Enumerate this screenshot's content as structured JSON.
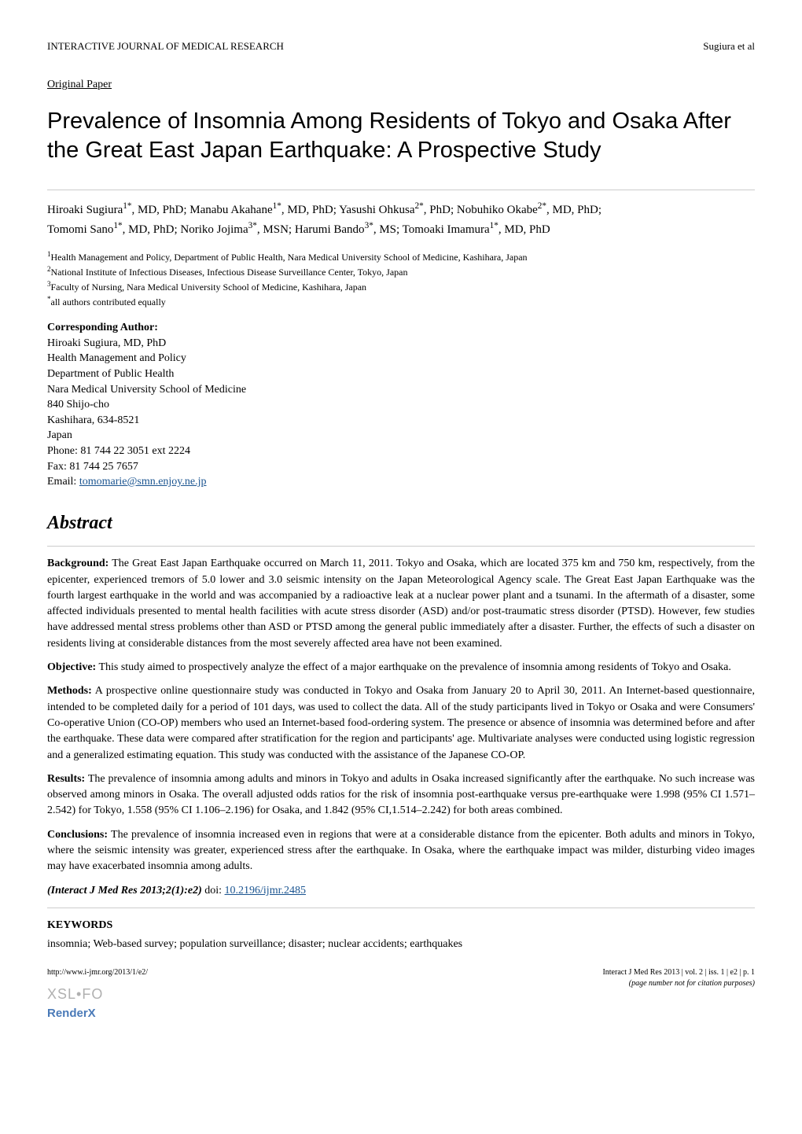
{
  "header": {
    "journal_name": "INTERACTIVE JOURNAL OF MEDICAL RESEARCH",
    "running_head": "Sugiura et al"
  },
  "paper_type": "Original Paper",
  "title": "Prevalence of Insomnia Among Residents of Tokyo and Osaka After the Great East Japan Earthquake: A Prospective Study",
  "authors_line1": "Hiroaki Sugiura1*, MD, PhD; Manabu Akahane1*, MD, PhD; Yasushi Ohkusa2*, PhD; Nobuhiko Okabe2*, MD, PhD;",
  "authors_line2": "Tomomi Sano1*, MD, PhD; Noriko Jojima3*, MSN; Harumi Bando3*, MS; Tomoaki Imamura1*, MD, PhD",
  "affiliations": {
    "aff1": "1Health Management and Policy, Department of Public Health, Nara Medical University School of Medicine, Kashihara, Japan",
    "aff2": "2National Institute of Infectious Diseases, Infectious Disease Surveillance Center, Tokyo, Japan",
    "aff3": "3Faculty of Nursing, Nara Medical University School of Medicine, Kashihara, Japan",
    "equal": "*all authors contributed equally"
  },
  "corresponding": {
    "label": "Corresponding Author:",
    "name": "Hiroaki Sugiura, MD, PhD",
    "line1": "Health Management and Policy",
    "line2": "Department of Public Health",
    "line3": "Nara Medical University School of Medicine",
    "line4": "840 Shijo-cho",
    "line5": "Kashihara, 634-8521",
    "line6": "Japan",
    "phone": "Phone: 81 744 22 3051 ext 2224",
    "fax": "Fax: 81 744 25 7657",
    "email_label": "Email: ",
    "email": "tomomarie@smn.enjoy.ne.jp"
  },
  "abstract": {
    "heading": "Abstract",
    "background_label": "Background:",
    "background_text": " The Great East Japan Earthquake occurred on March 11, 2011. Tokyo and Osaka, which are located 375 km and 750 km, respectively, from the epicenter, experienced tremors of 5.0 lower and 3.0 seismic intensity on the Japan Meteorological Agency scale. The Great East Japan Earthquake was the fourth largest earthquake in the world and was accompanied by a radioactive leak at a nuclear power plant and a tsunami. In the aftermath of a disaster, some affected individuals presented to mental health facilities with acute stress disorder (ASD) and/or post-traumatic stress disorder (PTSD). However, few studies have addressed mental stress problems other than ASD or PTSD among the general public immediately after a disaster. Further, the effects of such a disaster on residents living at considerable distances from the most severely affected area have not been examined.",
    "objective_label": "Objective:",
    "objective_text": " This study aimed to prospectively analyze the effect of a major earthquake on the prevalence of insomnia among residents of Tokyo and Osaka.",
    "methods_label": "Methods:",
    "methods_text": " A prospective online questionnaire study was conducted in Tokyo and Osaka from January 20 to April 30, 2011. An Internet-based questionnaire, intended to be completed daily for a period of 101 days, was used to collect the data. All of the study participants lived in Tokyo or Osaka and were Consumers' Co-operative Union (CO-OP) members who used an Internet-based food-ordering system. The presence or absence of insomnia was determined before and after the earthquake. These data were compared after stratification for the region and participants' age. Multivariate analyses were conducted using logistic regression and a generalized estimating equation. This study was conducted with the assistance of the Japanese CO-OP.",
    "results_label": "Results:",
    "results_text": " The prevalence of insomnia among adults and minors in Tokyo and adults in Osaka increased significantly after the earthquake. No such increase was observed among minors in Osaka. The overall adjusted odds ratios for the risk of insomnia post-earthquake versus pre-earthquake were 1.998 (95% CI 1.571–2.542) for Tokyo, 1.558 (95% CI 1.106–2.196) for Osaka, and 1.842 (95% CI,1.514–2.242) for both areas combined.",
    "conclusions_label": "Conclusions:",
    "conclusions_text": " The prevalence of insomnia increased even in regions that were at a considerable distance from the epicenter. Both adults and minors in Tokyo, where the seismic intensity was greater, experienced stress after the earthquake. In Osaka, where the earthquake impact was milder, disturbing video images may have exacerbated insomnia among adults."
  },
  "citation": {
    "label": "(Interact J Med Res 2013;2(1):e2)",
    "doi_prefix": "  doi: ",
    "doi": "10.2196/ijmr.2485"
  },
  "keywords": {
    "heading": "KEYWORDS",
    "text": "insomnia; Web-based survey; population surveillance; disaster; nuclear accidents; earthquakes"
  },
  "footer": {
    "left_url": "http://www.i-jmr.org/2013/1/e2/",
    "right_citation": "Interact J Med Res 2013 | vol. 2 | iss. 1 | e2 | p. 1",
    "right_note": "(page number not for citation purposes)",
    "logo_xsl": "XSL•FO",
    "logo_renderx": "RenderX"
  }
}
